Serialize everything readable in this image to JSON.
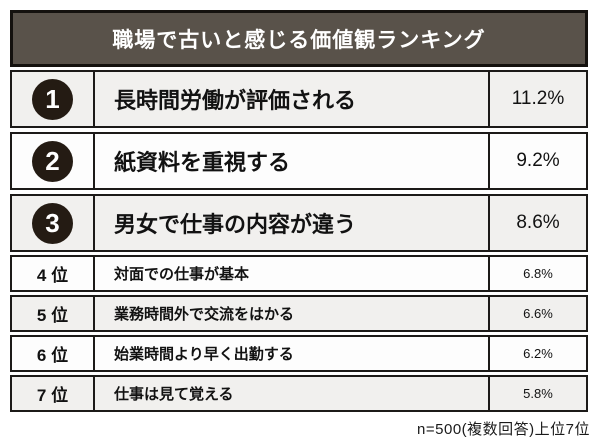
{
  "header": {
    "title": "職場で古いと感じる価値観ランキング"
  },
  "rows": [
    {
      "rank": "1",
      "label": "長時間労働が評価される",
      "value": "11.2%"
    },
    {
      "rank": "2",
      "label": "紙資料を重視する",
      "value": "9.2%"
    },
    {
      "rank": "3",
      "label": "男女で仕事の内容が違う",
      "value": "8.6%"
    },
    {
      "rank": "4 位",
      "label": "対面での仕事が基本",
      "value": "6.8%"
    },
    {
      "rank": "5 位",
      "label": "業務時間外で交流をはかる",
      "value": "6.6%"
    },
    {
      "rank": "6 位",
      "label": "始業時間より早く出勤する",
      "value": "6.2%"
    },
    {
      "rank": "7 位",
      "label": "仕事は見て覚える",
      "value": "5.8%"
    }
  ],
  "footnote": "n=500(複数回答)上位7位",
  "colors": {
    "header_bg": "#59524a",
    "border": "#1c1a18",
    "badge_bg": "#241b13",
    "row_gray": "#f1f0ee",
    "row_white": "#fdfdfd",
    "text": "#121212",
    "title_text": "#ffffff"
  },
  "chart_data": {
    "type": "table",
    "title": "職場で古いと感じる価値観ランキング",
    "categories": [
      "長時間労働が評価される",
      "紙資料を重視する",
      "男女で仕事の内容が違う",
      "対面での仕事が基本",
      "業務時間外で交流をはかる",
      "始業時間より早く出勤する",
      "仕事は見て覚える"
    ],
    "values": [
      11.2,
      9.2,
      8.6,
      6.8,
      6.6,
      6.2,
      5.8
    ],
    "ranks": [
      1,
      2,
      3,
      4,
      5,
      6,
      7
    ],
    "unit": "%",
    "note": "n=500(複数回答)上位7位",
    "legend_position": "none",
    "grid": false
  }
}
